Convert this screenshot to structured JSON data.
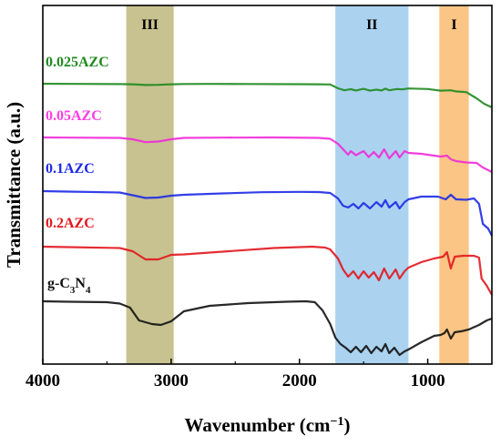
{
  "chart_data": {
    "type": "line",
    "xlabel": "Wavenumber (cm",
    "xlabel_sup": "−1",
    "xlabel_tail": ")",
    "ylabel": "Transmittance (a.u.)",
    "xlim": [
      4000,
      500
    ],
    "x_reversed": true,
    "x_ticks": [
      4000,
      3000,
      2000,
      1000
    ],
    "x_tick_labels": [
      "4000",
      "3000",
      "2000",
      "1000"
    ],
    "y_ticks_shown": false,
    "bands": [
      {
        "label": "III",
        "x_range": [
          3350,
          2980
        ],
        "color": "#b5ad6b"
      },
      {
        "label": "II",
        "x_range": [
          1720,
          1150
        ],
        "color": "#8fc3ea"
      },
      {
        "label": "I",
        "x_range": [
          910,
          680
        ],
        "color": "#f9b25e"
      }
    ],
    "series": [
      {
        "name": "0.025AZC",
        "color": "#1f8a1f",
        "label_color": "#1f8a1f",
        "points": [
          [
            4000,
            86
          ],
          [
            3700,
            86.2
          ],
          [
            3400,
            86.4
          ],
          [
            3300,
            86.6
          ],
          [
            3200,
            87.4
          ],
          [
            3100,
            87.2
          ],
          [
            3000,
            86.6
          ],
          [
            2900,
            86.3
          ],
          [
            2700,
            86.2
          ],
          [
            2400,
            86.3
          ],
          [
            2000,
            86.5
          ],
          [
            1850,
            86.6
          ],
          [
            1760,
            86.8
          ],
          [
            1700,
            91
          ],
          [
            1650,
            93.2
          ],
          [
            1600,
            92
          ],
          [
            1560,
            93.4
          ],
          [
            1500,
            91.6
          ],
          [
            1450,
            93.6
          ],
          [
            1400,
            92.4
          ],
          [
            1360,
            93.4
          ],
          [
            1330,
            91.4
          ],
          [
            1300,
            93.2
          ],
          [
            1240,
            91.8
          ],
          [
            1200,
            92.2
          ],
          [
            1150,
            91.2
          ],
          [
            1000,
            91.8
          ],
          [
            900,
            93.6
          ],
          [
            820,
            93.2
          ],
          [
            780,
            94.4
          ],
          [
            700,
            95.2
          ],
          [
            620,
            102
          ],
          [
            560,
            108
          ],
          [
            500,
            112
          ]
        ]
      },
      {
        "name": "0.05AZC",
        "color": "#ef2ad8",
        "label_color": "#ff3ce6",
        "points": [
          [
            4000,
            145
          ],
          [
            3800,
            145.2
          ],
          [
            3400,
            145.5
          ],
          [
            3300,
            147
          ],
          [
            3200,
            150.2
          ],
          [
            3100,
            149.5
          ],
          [
            3000,
            147
          ],
          [
            2900,
            145.5
          ],
          [
            2600,
            145.2
          ],
          [
            2200,
            145
          ],
          [
            1850,
            145.5
          ],
          [
            1760,
            146.5
          ],
          [
            1700,
            152
          ],
          [
            1660,
            158
          ],
          [
            1620,
            164
          ],
          [
            1600,
            160
          ],
          [
            1560,
            164.5
          ],
          [
            1500,
            160
          ],
          [
            1460,
            166.5
          ],
          [
            1420,
            161
          ],
          [
            1380,
            167
          ],
          [
            1340,
            158
          ],
          [
            1300,
            168
          ],
          [
            1250,
            160
          ],
          [
            1220,
            167
          ],
          [
            1180,
            160
          ],
          [
            1150,
            162
          ],
          [
            1050,
            163
          ],
          [
            900,
            166
          ],
          [
            850,
            165
          ],
          [
            820,
            169
          ],
          [
            780,
            171
          ],
          [
            700,
            172.5
          ],
          [
            620,
            173
          ],
          [
            570,
            178
          ],
          [
            500,
            183
          ]
        ]
      },
      {
        "name": "0.1AZC",
        "color": "#1c2ae5",
        "label_color": "#1c2ae5",
        "points": [
          [
            4000,
            204
          ],
          [
            3800,
            204.5
          ],
          [
            3400,
            205.5
          ],
          [
            3300,
            208.5
          ],
          [
            3200,
            211.5
          ],
          [
            3100,
            211
          ],
          [
            3000,
            209
          ],
          [
            2900,
            208
          ],
          [
            2600,
            206.5
          ],
          [
            2300,
            205.2
          ],
          [
            2000,
            204.8
          ],
          [
            1850,
            205
          ],
          [
            1760,
            206
          ],
          [
            1700,
            212
          ],
          [
            1660,
            220
          ],
          [
            1620,
            222
          ],
          [
            1580,
            218
          ],
          [
            1540,
            223
          ],
          [
            1500,
            217
          ],
          [
            1450,
            223
          ],
          [
            1400,
            216
          ],
          [
            1360,
            221
          ],
          [
            1330,
            214
          ],
          [
            1300,
            222
          ],
          [
            1250,
            216
          ],
          [
            1220,
            223
          ],
          [
            1180,
            216
          ],
          [
            1150,
            213
          ],
          [
            1050,
            210
          ],
          [
            920,
            210
          ],
          [
            860,
            213
          ],
          [
            820,
            208
          ],
          [
            780,
            213
          ],
          [
            700,
            213.5
          ],
          [
            640,
            212
          ],
          [
            600,
            218
          ],
          [
            570,
            240
          ],
          [
            530,
            245
          ],
          [
            500,
            253
          ]
        ]
      },
      {
        "name": "0.2AZC",
        "color": "#e2161d",
        "label_color": "#e2161d",
        "points": [
          [
            4000,
            265
          ],
          [
            3800,
            265.5
          ],
          [
            3400,
            266.5
          ],
          [
            3300,
            270
          ],
          [
            3200,
            279
          ],
          [
            3100,
            279
          ],
          [
            3000,
            274
          ],
          [
            2900,
            273.5
          ],
          [
            2600,
            270.5
          ],
          [
            2200,
            266.5
          ],
          [
            1900,
            265
          ],
          [
            1800,
            266
          ],
          [
            1760,
            268
          ],
          [
            1700,
            278
          ],
          [
            1660,
            290
          ],
          [
            1620,
            298
          ],
          [
            1580,
            292
          ],
          [
            1540,
            300
          ],
          [
            1500,
            292
          ],
          [
            1460,
            299
          ],
          [
            1420,
            293
          ],
          [
            1380,
            302
          ],
          [
            1340,
            289
          ],
          [
            1300,
            300
          ],
          [
            1250,
            290
          ],
          [
            1220,
            300
          ],
          [
            1180,
            292
          ],
          [
            1150,
            288
          ],
          [
            1050,
            282
          ],
          [
            950,
            278
          ],
          [
            880,
            276
          ],
          [
            850,
            271
          ],
          [
            820,
            289
          ],
          [
            790,
            276
          ],
          [
            720,
            275
          ],
          [
            640,
            275
          ],
          [
            600,
            277
          ],
          [
            580,
            300
          ],
          [
            540,
            308
          ],
          [
            500,
            318
          ]
        ]
      },
      {
        "name": "g-C3N4",
        "label_main": "g-C",
        "label_sub1": "3",
        "label_mid": "N",
        "label_sub2": "4",
        "color": "#111111",
        "label_color": "#111111",
        "points": [
          [
            4000,
            325
          ],
          [
            3800,
            325.5
          ],
          [
            3500,
            326
          ],
          [
            3400,
            327.5
          ],
          [
            3320,
            332
          ],
          [
            3250,
            346
          ],
          [
            3150,
            350
          ],
          [
            3080,
            351
          ],
          [
            3000,
            347
          ],
          [
            2900,
            336
          ],
          [
            2700,
            330
          ],
          [
            2400,
            327
          ],
          [
            2100,
            325.5
          ],
          [
            1950,
            325
          ],
          [
            1880,
            326
          ],
          [
            1820,
            335
          ],
          [
            1760,
            350
          ],
          [
            1720,
            365
          ],
          [
            1680,
            372
          ],
          [
            1640,
            376
          ],
          [
            1600,
            381
          ],
          [
            1560,
            375
          ],
          [
            1520,
            381
          ],
          [
            1480,
            374
          ],
          [
            1440,
            382
          ],
          [
            1400,
            375
          ],
          [
            1360,
            380
          ],
          [
            1330,
            372
          ],
          [
            1300,
            382
          ],
          [
            1260,
            376
          ],
          [
            1220,
            384
          ],
          [
            1180,
            380
          ],
          [
            1150,
            378
          ],
          [
            1050,
            370
          ],
          [
            950,
            363
          ],
          [
            900,
            362
          ],
          [
            870,
            360
          ],
          [
            850,
            356
          ],
          [
            820,
            366
          ],
          [
            790,
            359
          ],
          [
            740,
            358
          ],
          [
            680,
            356
          ],
          [
            600,
            351
          ],
          [
            540,
            346
          ],
          [
            500,
            344
          ]
        ]
      }
    ]
  }
}
